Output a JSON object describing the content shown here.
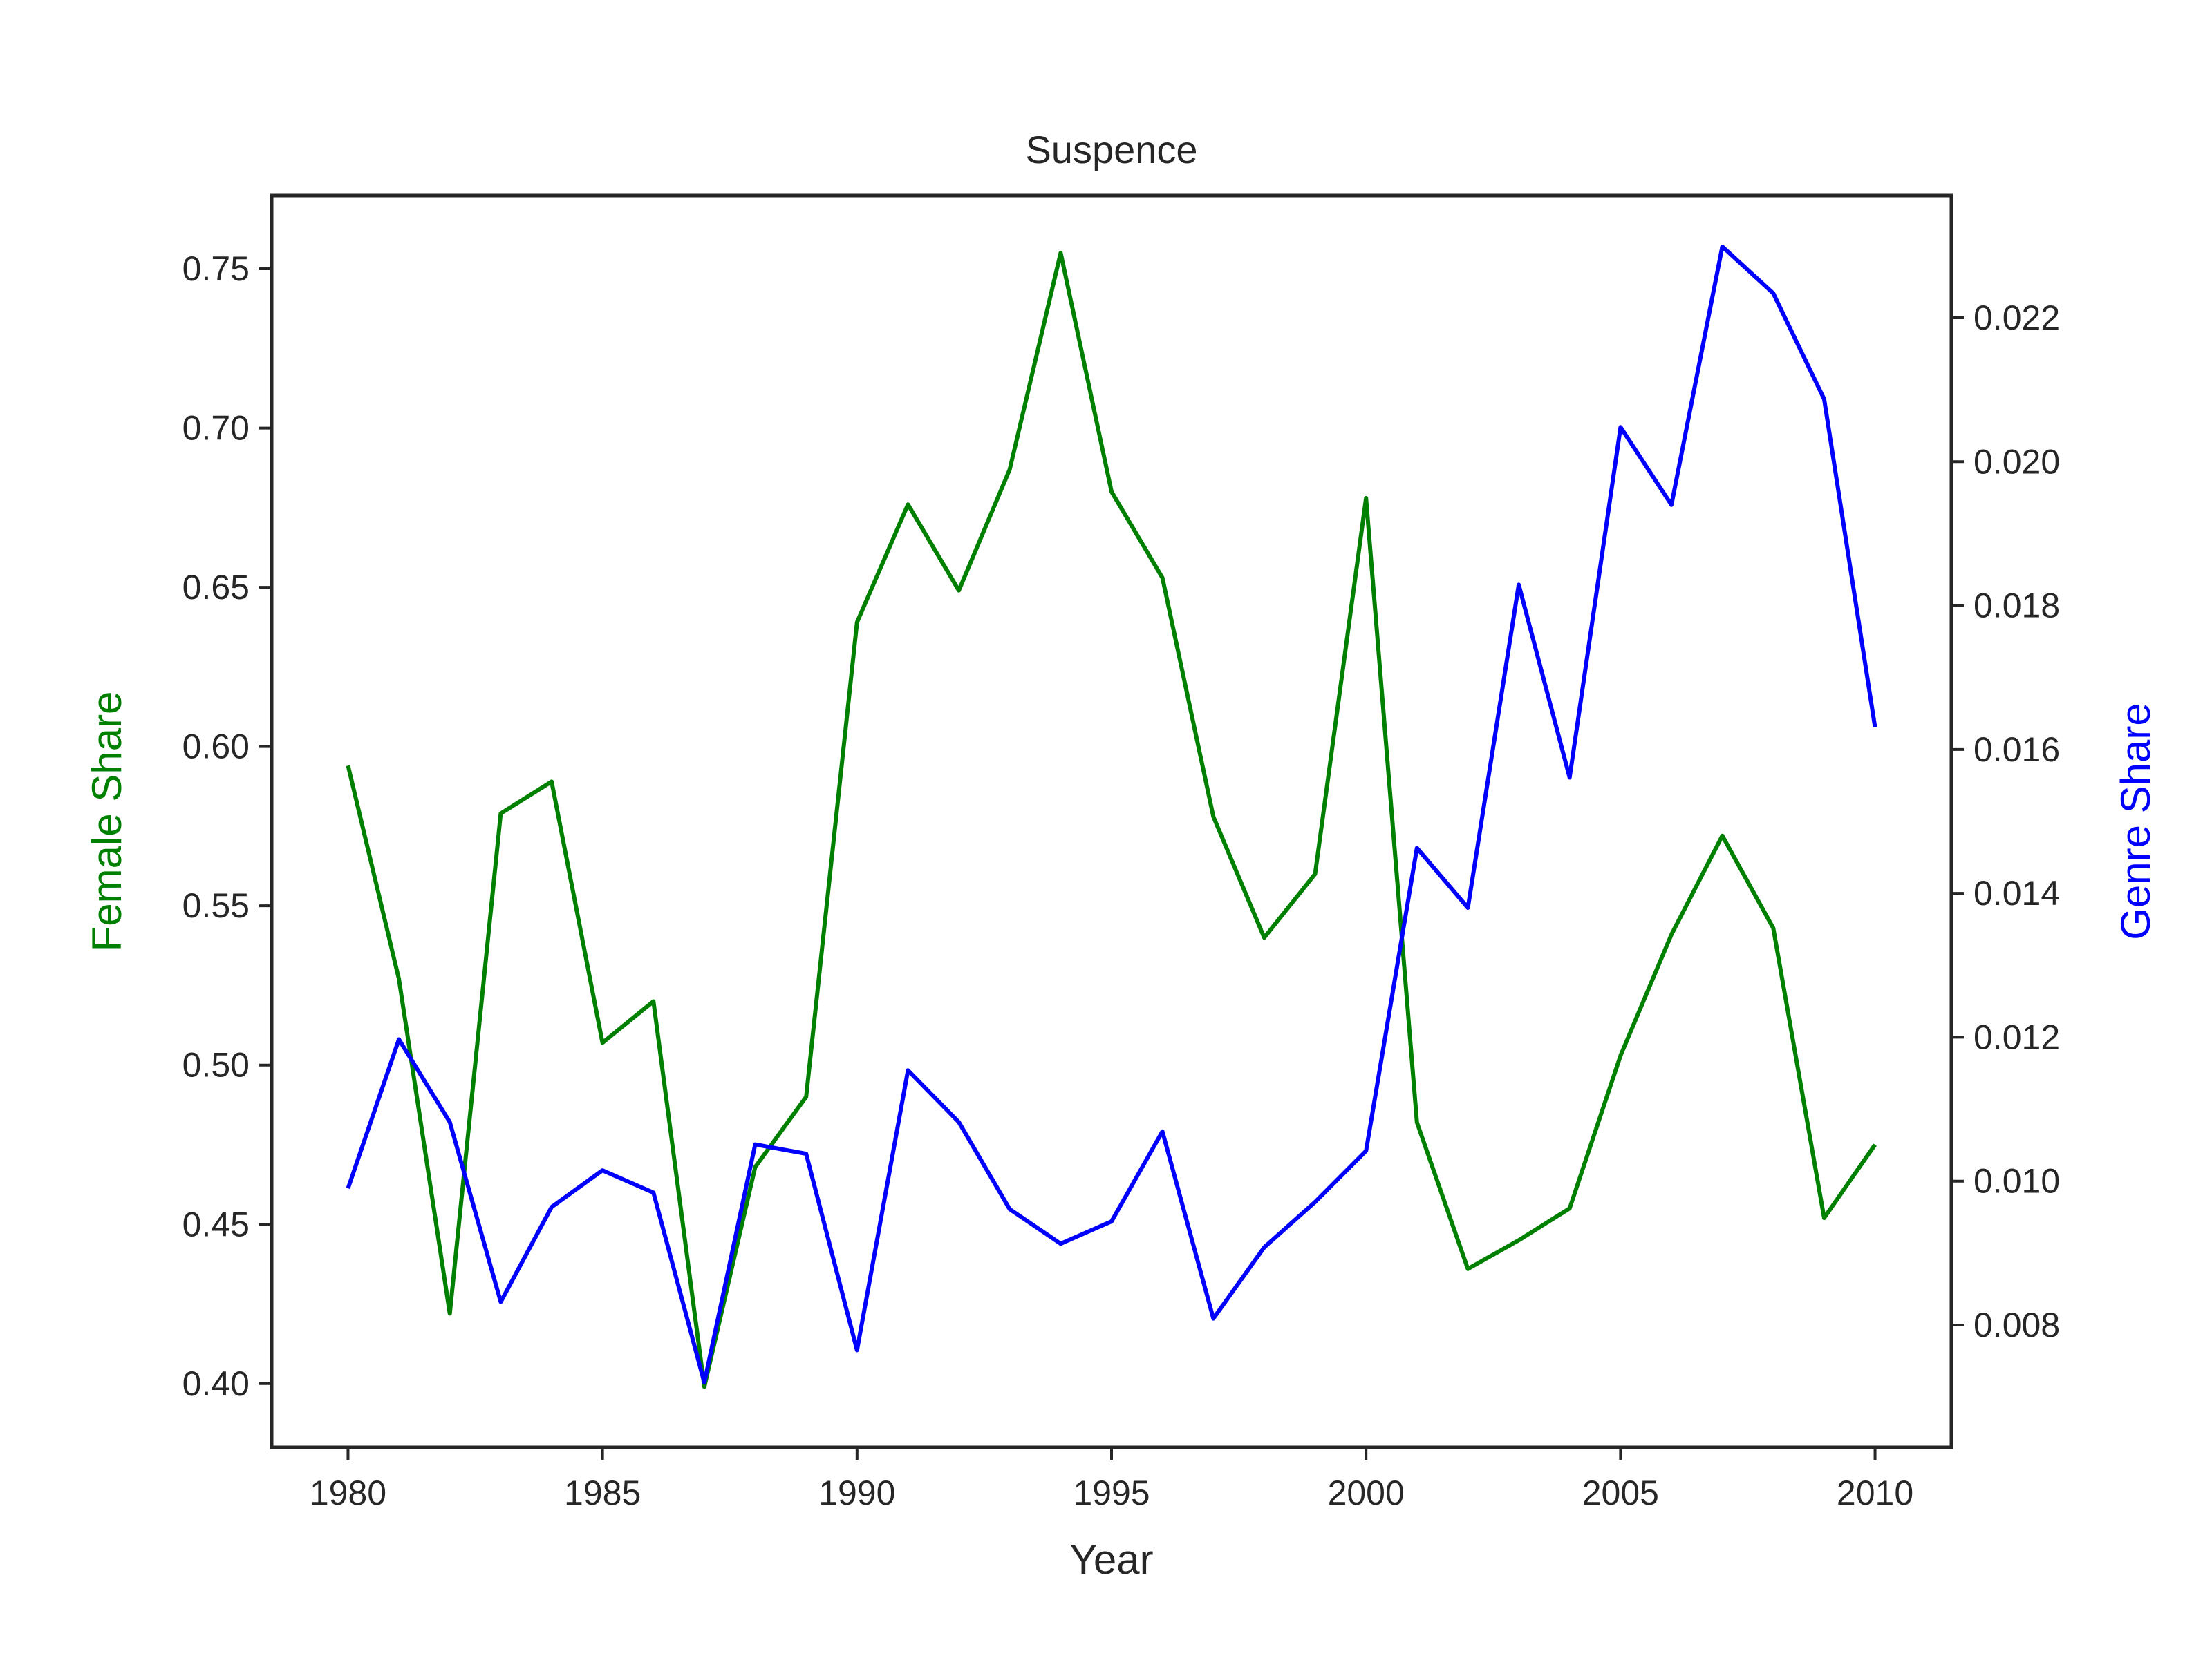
{
  "chart_data": {
    "type": "line",
    "title": "Suspence",
    "xlabel": "Year",
    "ylabel_left": "Female Share",
    "ylabel_right": "Genre Share",
    "xlim": [
      1978.5,
      2011.5
    ],
    "ylim_left": [
      0.38,
      0.773
    ],
    "ylim_right": [
      0.0063,
      0.0237
    ],
    "x_ticks": [
      1980,
      1985,
      1990,
      1995,
      2000,
      2005,
      2010
    ],
    "x_tick_labels": [
      "1980",
      "1985",
      "1990",
      "1995",
      "2000",
      "2005",
      "2010"
    ],
    "y_left_ticks": [
      0.4,
      0.45,
      0.5,
      0.55,
      0.6,
      0.65,
      0.7,
      0.75
    ],
    "y_left_tick_labels": [
      "0.40",
      "0.45",
      "0.50",
      "0.55",
      "0.60",
      "0.65",
      "0.70",
      "0.75"
    ],
    "y_right_ticks": [
      0.008,
      0.01,
      0.012,
      0.014,
      0.016,
      0.018,
      0.02,
      0.022
    ],
    "y_right_tick_labels": [
      "0.008",
      "0.010",
      "0.012",
      "0.014",
      "0.016",
      "0.018",
      "0.020",
      "0.022"
    ],
    "grid": false,
    "x": [
      1980,
      1981,
      1982,
      1983,
      1984,
      1985,
      1986,
      1987,
      1988,
      1989,
      1990,
      1991,
      1992,
      1993,
      1994,
      1995,
      1996,
      1997,
      1998,
      1999,
      2000,
      2001,
      2002,
      2003,
      2004,
      2005,
      2006,
      2007,
      2008,
      2009,
      2010
    ],
    "series": [
      {
        "axis": "left",
        "color": "#008000",
        "values": [
          0.594,
          0.527,
          0.422,
          0.579,
          0.589,
          0.507,
          0.52,
          0.399,
          0.468,
          0.49,
          0.639,
          0.676,
          0.649,
          0.687,
          0.755,
          0.68,
          0.653,
          0.578,
          0.54,
          0.56,
          0.678,
          0.482,
          0.436,
          0.445,
          0.455,
          0.503,
          0.541,
          0.572,
          0.543,
          0.452,
          0.475
        ]
      },
      {
        "axis": "right",
        "color": "#0000ff",
        "values": [
          0.0099,
          0.01197,
          0.01082,
          0.00832,
          0.00964,
          0.01015,
          0.00984,
          0.0072,
          0.01051,
          0.01038,
          0.00765,
          0.01154,
          0.01082,
          0.00961,
          0.00913,
          0.00944,
          0.01069,
          0.00809,
          0.00908,
          0.00971,
          0.01042,
          0.01463,
          0.0138,
          0.01829,
          0.01561,
          0.02048,
          0.0194,
          0.02299,
          0.02234,
          0.02087,
          0.01631
        ]
      }
    ]
  }
}
